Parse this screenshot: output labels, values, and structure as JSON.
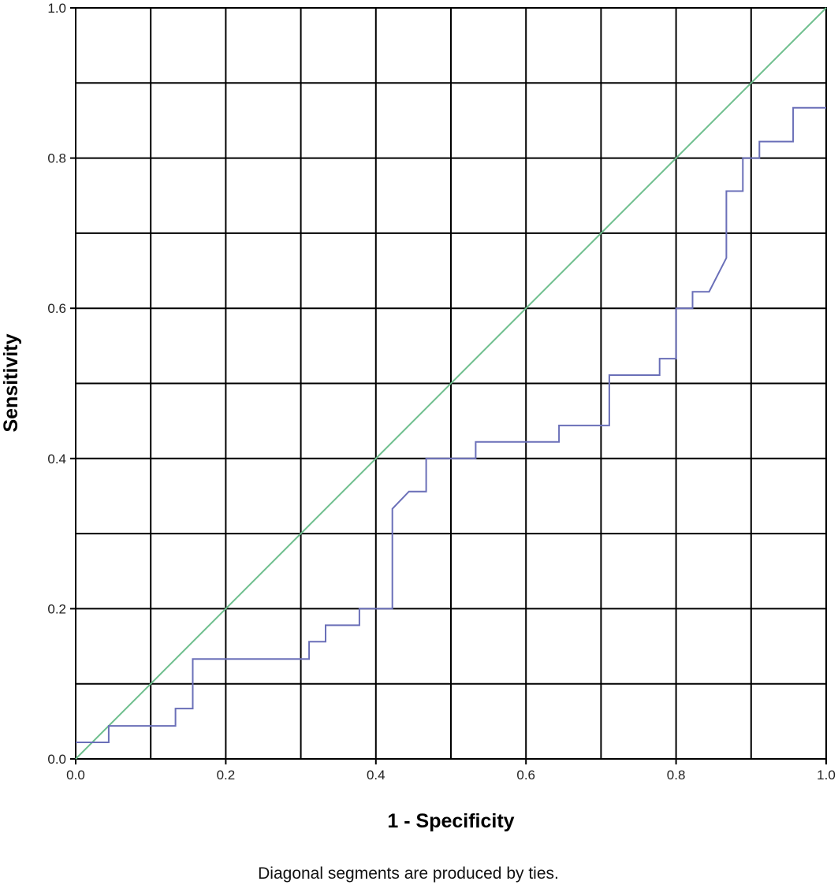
{
  "chart_data": {
    "type": "line",
    "xlabel": "1 - Specificity",
    "ylabel": "Sensitivity",
    "xlim": [
      0,
      1
    ],
    "ylim": [
      0,
      1
    ],
    "grid": true,
    "xticks": [
      "0.0",
      "0.2",
      "0.4",
      "0.6",
      "0.8",
      "1.0"
    ],
    "yticks": [
      "0.0",
      "0.2",
      "0.4",
      "0.6",
      "0.8",
      "1.0"
    ],
    "footnote": "Diagonal segments are produced by ties.",
    "series": [
      {
        "color": "#6a6fb8",
        "x": [
          0.0,
          0.044,
          0.044,
          0.133,
          0.133,
          0.156,
          0.156,
          0.311,
          0.311,
          0.333,
          0.333,
          0.378,
          0.378,
          0.422,
          0.422,
          0.444,
          0.467,
          0.467,
          0.533,
          0.533,
          0.644,
          0.644,
          0.711,
          0.711,
          0.778,
          0.778,
          0.8,
          0.8,
          0.822,
          0.822,
          0.844,
          0.867,
          0.867,
          0.889,
          0.889,
          0.911,
          0.911,
          0.956,
          0.956,
          1.0
        ],
        "y": [
          0.022,
          0.022,
          0.044,
          0.044,
          0.067,
          0.067,
          0.133,
          0.133,
          0.156,
          0.156,
          0.178,
          0.178,
          0.2,
          0.2,
          0.333,
          0.356,
          0.356,
          0.4,
          0.4,
          0.422,
          0.422,
          0.444,
          0.444,
          0.511,
          0.511,
          0.533,
          0.533,
          0.6,
          0.6,
          0.622,
          0.622,
          0.667,
          0.756,
          0.756,
          0.8,
          0.8,
          0.822,
          0.822,
          0.867,
          0.867
        ]
      },
      {
        "color": "#6fbf8e",
        "x": [
          0,
          1
        ],
        "y": [
          0,
          1
        ]
      }
    ]
  }
}
